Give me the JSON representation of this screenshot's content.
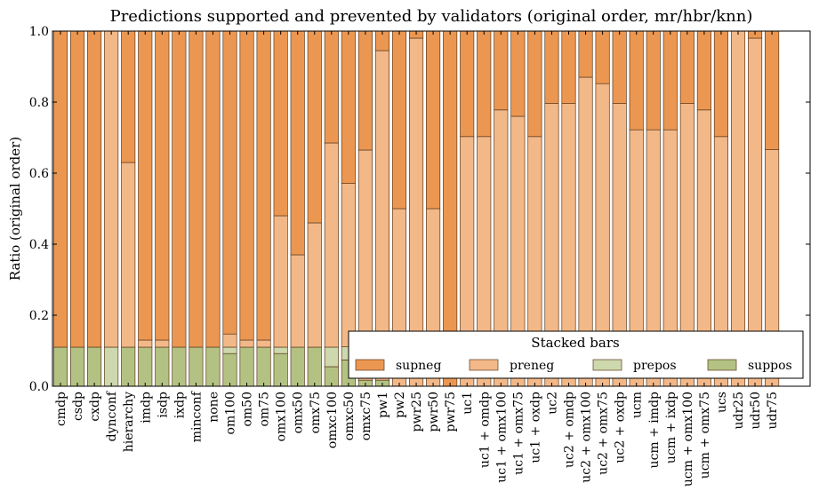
{
  "chart_data": {
    "type": "bar",
    "stacked": true,
    "title": "Predictions supported and prevented by validators (original order, mr/hbr/knn)",
    "xlabel": "",
    "ylabel": "Ratio (original order)",
    "ylim": [
      0,
      1.0
    ],
    "yticks": [
      "0.0",
      "0.2",
      "0.4",
      "0.6",
      "0.8",
      "1.0"
    ],
    "grid": false,
    "legend": {
      "title": "Stacked bars",
      "placement": "bottom-right"
    },
    "categories": [
      "cmdp",
      "csdp",
      "cxdp",
      "dynconf",
      "hierarchy",
      "imdp",
      "isdp",
      "ixdp",
      "minconf",
      "none",
      "om100",
      "om50",
      "om75",
      "omx100",
      "omx50",
      "omx75",
      "omxc100",
      "omxc50",
      "omxc75",
      "pw1",
      "pw2",
      "pwr25",
      "pwr50",
      "pwr75",
      "uc1",
      "uc1 + omdp",
      "uc1 + omx100",
      "uc1 + omx75",
      "uc1 + oxdp",
      "uc2",
      "uc2 + omdp",
      "uc2 + omx100",
      "uc2 + omx75",
      "uc2 + oxdp",
      "ucm",
      "ucm + imdp",
      "ucm + ixdp",
      "ucm + omx100",
      "ucm + omx75",
      "ucs",
      "udr25",
      "udr50",
      "udr75"
    ],
    "series": [
      {
        "name": "suppos",
        "color": "#b3c283",
        "values": [
          0.11,
          0.11,
          0.11,
          0,
          0.11,
          0.11,
          0.11,
          0.11,
          0.11,
          0.11,
          0.092,
          0.11,
          0.11,
          0.092,
          0.11,
          0.11,
          0.055,
          0.074,
          0.017,
          0.017,
          0,
          0,
          0,
          0,
          0,
          0,
          0,
          0,
          0,
          0,
          0,
          0,
          0,
          0,
          0,
          0,
          0,
          0,
          0,
          0,
          0,
          0,
          0
        ]
      },
      {
        "name": "prepos",
        "color": "#ced8ad",
        "values": [
          0,
          0,
          0,
          0.11,
          0,
          0,
          0,
          0,
          0,
          0,
          0.018,
          0,
          0,
          0.018,
          0,
          0,
          0.055,
          0.037,
          0,
          0,
          0,
          0,
          0,
          0,
          0,
          0,
          0,
          0,
          0,
          0,
          0,
          0,
          0,
          0,
          0,
          0,
          0,
          0,
          0,
          0,
          0,
          0,
          0
        ]
      },
      {
        "name": "preneg",
        "color": "#f3b888",
        "values": [
          0,
          0,
          0,
          0.89,
          0.52,
          0.02,
          0.02,
          0,
          0,
          0,
          0.037,
          0.02,
          0.02,
          0.37,
          0.26,
          0.35,
          0.575,
          0.46,
          0.648,
          0.928,
          0.5,
          0.98,
          0.5,
          0,
          0.703,
          0.703,
          0.778,
          0.76,
          0.703,
          0.796,
          0.796,
          0.87,
          0.852,
          0.796,
          0.722,
          0.722,
          0.722,
          0.796,
          0.778,
          0.703,
          1.0,
          0.98,
          0.666
        ]
      },
      {
        "name": "supneg",
        "color": "#ec9751",
        "values": [
          0.89,
          0.89,
          0.89,
          0,
          0.37,
          0.87,
          0.87,
          0.89,
          0.89,
          0.89,
          0.853,
          0.87,
          0.87,
          0.52,
          0.63,
          0.54,
          0.315,
          0.429,
          0.335,
          0.055,
          0.5,
          0.02,
          0.5,
          1.0,
          0.297,
          0.297,
          0.222,
          0.24,
          0.297,
          0.204,
          0.204,
          0.13,
          0.148,
          0.204,
          0.278,
          0.278,
          0.278,
          0.204,
          0.222,
          0.297,
          0,
          0.02,
          0.334
        ]
      }
    ]
  }
}
